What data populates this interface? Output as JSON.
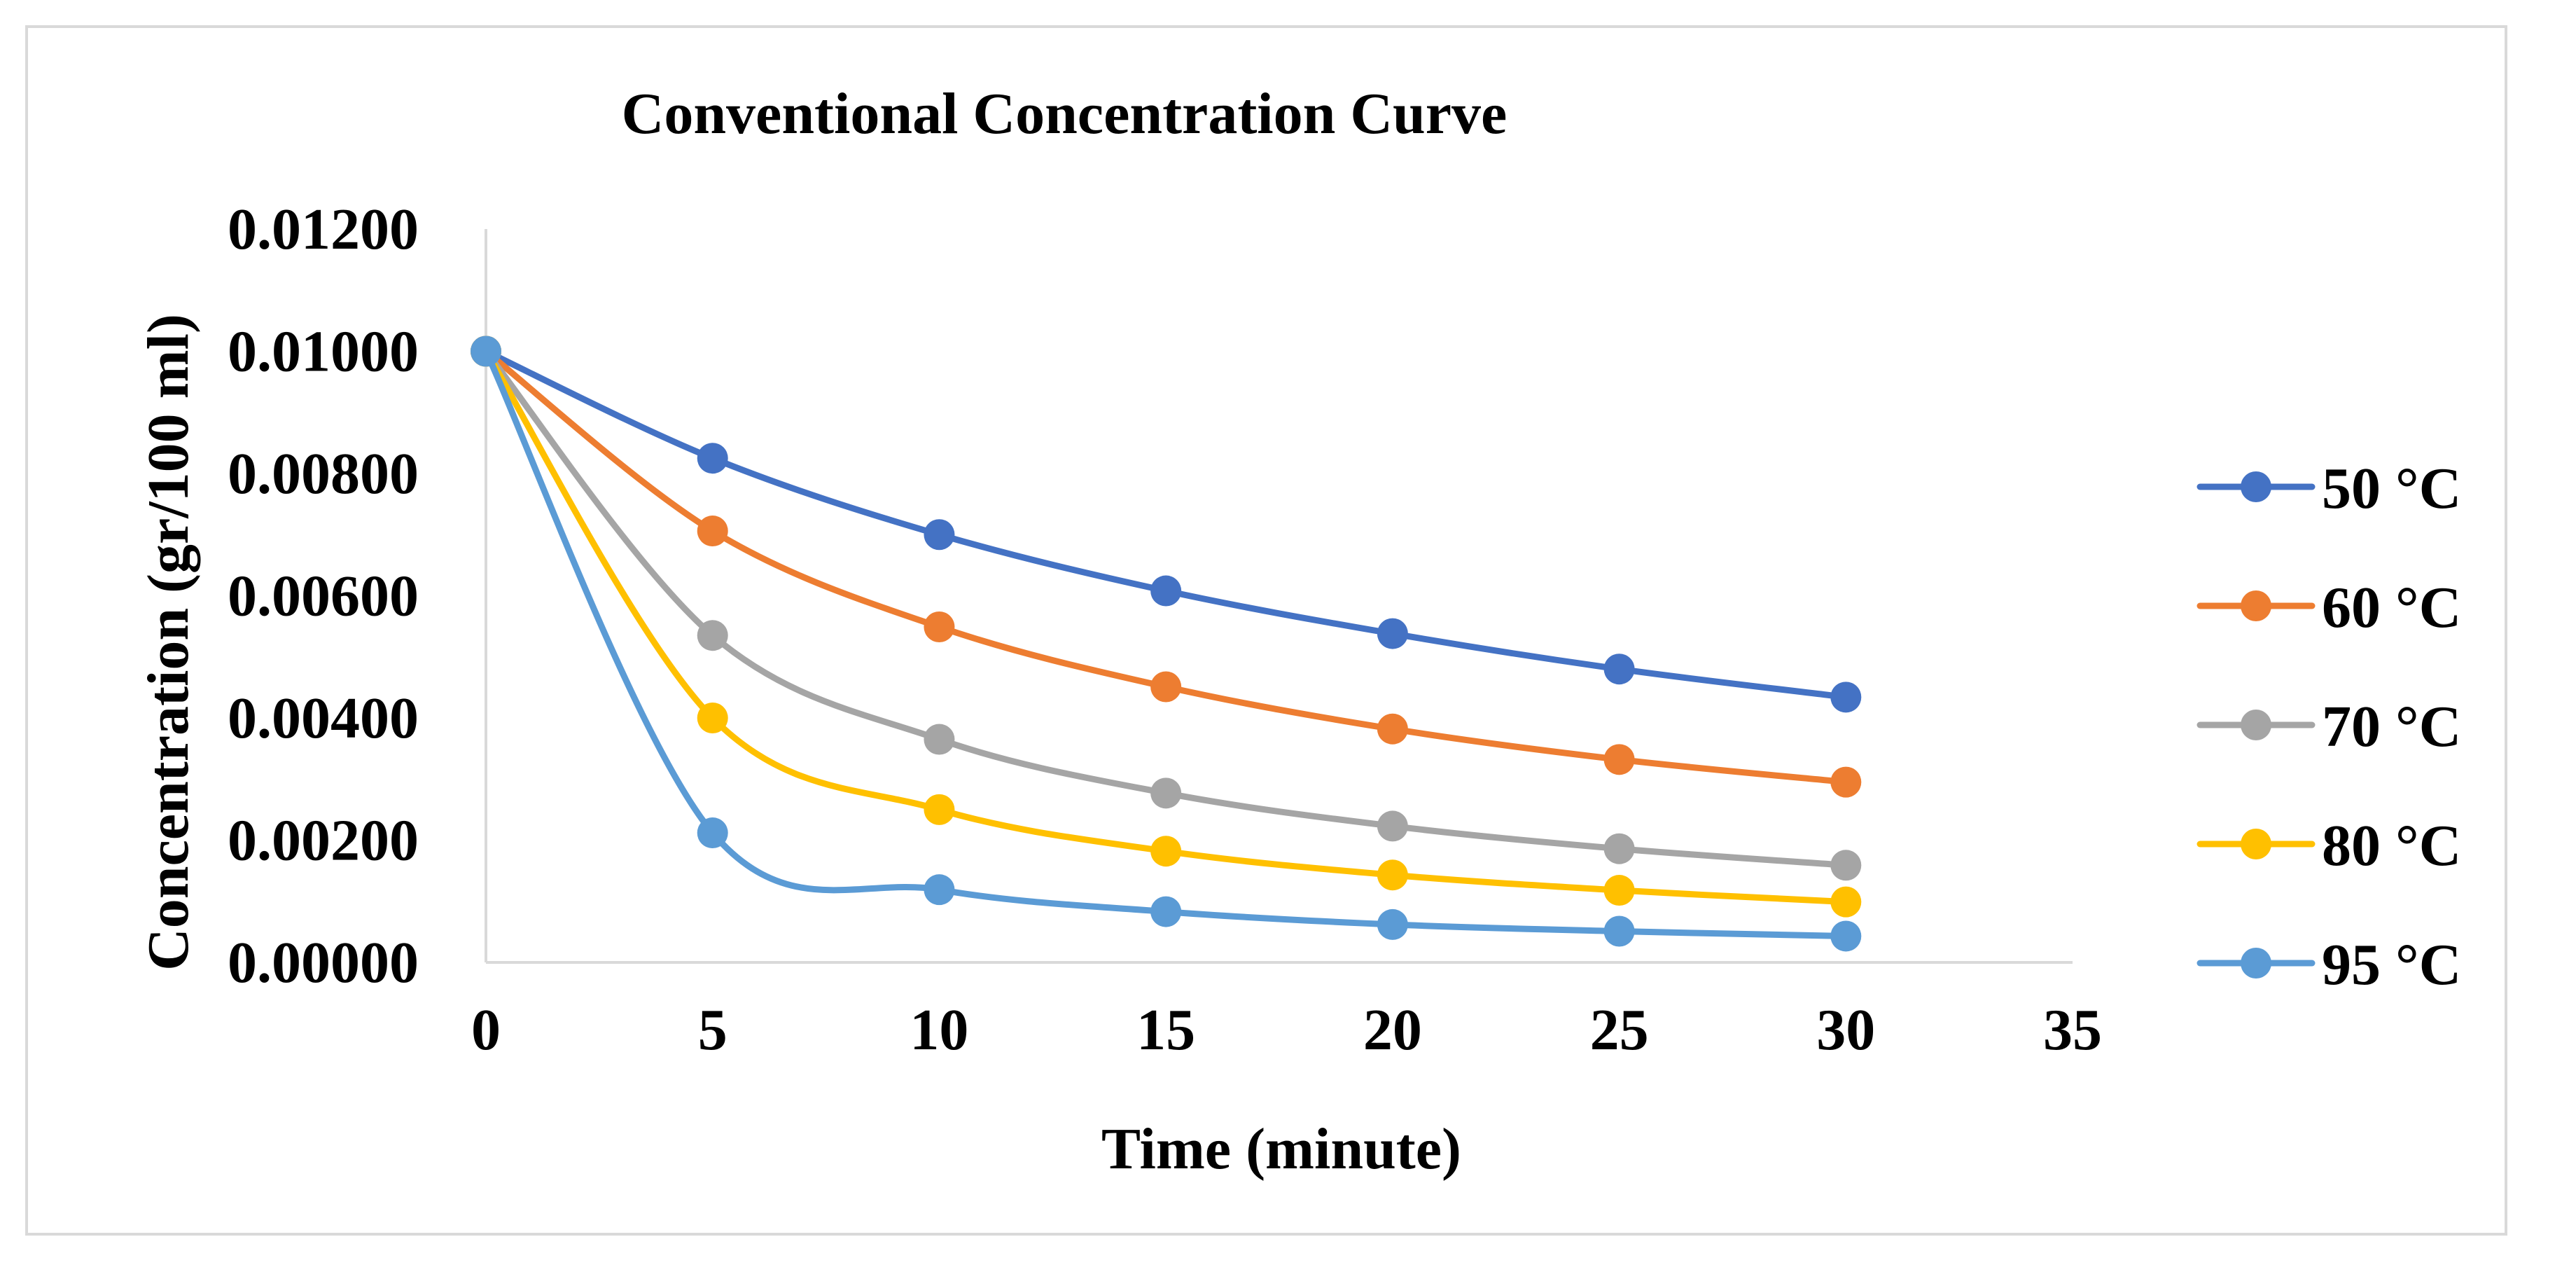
{
  "chart_data": {
    "type": "line",
    "title": "Conventional Concentration Curve",
    "xlabel": "Time (minute)",
    "ylabel": "Concentration (gr/100 ml)",
    "xlim": [
      0,
      35
    ],
    "ylim": [
      0,
      0.012
    ],
    "x_ticks": [
      "0",
      "5",
      "10",
      "15",
      "20",
      "25",
      "30",
      "35"
    ],
    "y_ticks": [
      "0.00000",
      "0.00200",
      "0.00400",
      "0.00600",
      "0.00800",
      "0.01000",
      "0.01200"
    ],
    "grid": false,
    "legend_position": "right",
    "x": [
      0,
      5,
      10,
      15,
      20,
      25,
      30
    ],
    "series": [
      {
        "name": "50 °C",
        "color": "#4472C4",
        "values": [
          0.01,
          0.00825,
          0.007,
          0.00608,
          0.00538,
          0.0048,
          0.00434
        ]
      },
      {
        "name": "60 °C",
        "color": "#ED7D31",
        "values": [
          0.01,
          0.00706,
          0.00549,
          0.00451,
          0.00382,
          0.00332,
          0.00295
        ]
      },
      {
        "name": "70 °C",
        "color": "#A5A5A5",
        "values": [
          0.01,
          0.00535,
          0.00365,
          0.00277,
          0.00223,
          0.00186,
          0.00159
        ]
      },
      {
        "name": "80 °C",
        "color": "#FFC000",
        "values": [
          0.01,
          0.004,
          0.0025,
          0.00182,
          0.00143,
          0.00118,
          0.00099
        ]
      },
      {
        "name": "95 °C",
        "color": "#5B9BD5",
        "values": [
          0.01,
          0.00212,
          0.00119,
          0.00083,
          0.00062,
          0.00051,
          0.00043
        ]
      }
    ]
  }
}
